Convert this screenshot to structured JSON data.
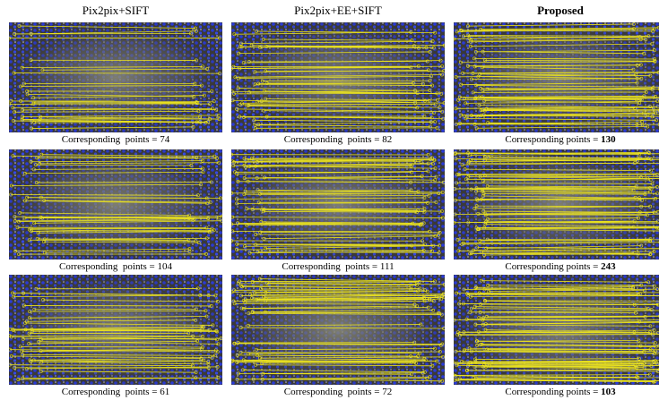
{
  "columns": [
    "Pix2pix+SIFT",
    "Pix2pix+EE+SIFT",
    "Proposed"
  ],
  "rows": [
    [
      {
        "label": "Corresponding  points =",
        "count": 74
      },
      {
        "label": "Corresponding  points =",
        "count": 82
      },
      {
        "label": "Corresponding points =",
        "count": 130
      }
    ],
    [
      {
        "label": "Corresponding  points =",
        "count": 104
      },
      {
        "label": "Corresponding  points =",
        "count": 111
      },
      {
        "label": "Corresponding points =",
        "count": 243
      }
    ],
    [
      {
        "label": "Corresponding  points =",
        "count": 61
      },
      {
        "label": "Corresponding  points =",
        "count": 72
      },
      {
        "label": "Corresponding points =",
        "count": 103
      }
    ]
  ]
}
